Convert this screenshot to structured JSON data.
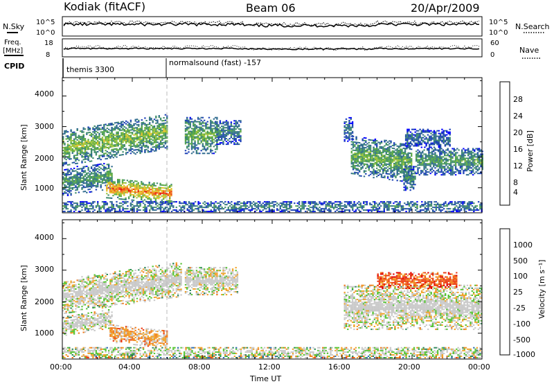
{
  "header": {
    "station": "Kodiak (fitACF)",
    "beam": "Beam 06",
    "date": "20/Apr/2009"
  },
  "top_panels": {
    "nsky_label": "N.Sky",
    "nsearch_label": "N.Search",
    "count_ticks_left": [
      "10^5",
      "10^0"
    ],
    "count_ticks_right": [
      "10^5",
      "10^0"
    ],
    "freq_label_1": "Freq.",
    "freq_label_2": "[MHz]",
    "freq_ticks": [
      "18",
      "8"
    ],
    "nave_label": "Nave",
    "nave_ticks": [
      "60",
      "0"
    ],
    "cpid_label": "CPID",
    "cpid_segments": [
      {
        "label": "themis 3300",
        "start_hour": 0.0
      },
      {
        "label": "normalsound (fast) -157",
        "start_hour": 6.0
      }
    ]
  },
  "axes": {
    "xlabel": "Time UT",
    "xticks": [
      "00:00",
      "04:00",
      "08:00",
      "12:00",
      "16:00",
      "20:00",
      "00:00"
    ],
    "ylabel": "Slant Range [km]",
    "yticks": [
      "4000",
      "3000",
      "2000",
      "1000"
    ],
    "power_label": "Power [dB]",
    "power_ticks": [
      "28",
      "24",
      "20",
      "16",
      "12",
      "8",
      "4"
    ],
    "velocity_label": "Velocity [m s⁻¹]",
    "velocity_ticks": [
      "1000",
      "500",
      "100",
      "25",
      "-25",
      "-100",
      "-500",
      "-1000"
    ]
  },
  "colors": {
    "power_scale": [
      "#0000ff",
      "#1a3fb5",
      "#2e6a8e",
      "#3e8c6a",
      "#58a845",
      "#9bc43a",
      "#e6c22a",
      "#f08a1e",
      "#ee3d12",
      "#e00000"
    ],
    "velocity_scale": [
      "#1f3fa8",
      "#2f6fb3",
      "#2f8a5c",
      "#55c433",
      "#c8c8c8",
      "#c8c8c8",
      "#f0a32a",
      "#f07a1a",
      "#ec3a10",
      "#e00000"
    ],
    "ground_scatter": "#bdbdbd"
  },
  "chart_data": {
    "type": "heatmap",
    "title": "Kodiak (fitACF)",
    "xlabel": "Time UT",
    "ylabel": "Slant Range [km]",
    "xlim_hours": [
      0,
      24
    ],
    "ylim_km": [
      180,
      4600
    ],
    "panels": [
      {
        "name": "Power [dB]",
        "range": [
          0,
          30
        ],
        "regions": [
          {
            "t0": 0.0,
            "t1": 6.0,
            "r0": 1700,
            "r1": 2850,
            "value": 16,
            "slope": 550
          },
          {
            "t0": 0.0,
            "t1": 2.8,
            "r0": 700,
            "r1": 1600,
            "value": 12,
            "slope": 250
          },
          {
            "t0": 2.5,
            "t1": 6.2,
            "r0": 650,
            "r1": 1300,
            "value": 24,
            "slope": -200
          },
          {
            "t0": 7.0,
            "t1": 8.8,
            "r0": 2100,
            "r1": 3300,
            "value": 14,
            "slope": 0
          },
          {
            "t0": 8.8,
            "t1": 10.2,
            "r0": 2400,
            "r1": 3200,
            "value": 10,
            "slope": 0
          },
          {
            "t0": 16.1,
            "t1": 16.6,
            "r0": 2500,
            "r1": 3300,
            "value": 8,
            "slope": 0
          },
          {
            "t0": 16.5,
            "t1": 20.0,
            "r0": 1400,
            "r1": 2700,
            "value": 14,
            "slope": -250
          },
          {
            "t0": 19.5,
            "t1": 20.2,
            "r0": 900,
            "r1": 1700,
            "value": 10,
            "slope": 0
          },
          {
            "t0": 20.2,
            "t1": 24.0,
            "r0": 1400,
            "r1": 2300,
            "value": 12,
            "slope": 0
          },
          {
            "t0": 19.6,
            "t1": 22.2,
            "r0": 2300,
            "r1": 2900,
            "value": 8,
            "slope": 0
          },
          {
            "t0": 0.0,
            "t1": 24.0,
            "r0": 200,
            "r1": 520,
            "value": 10,
            "slope": 0
          }
        ]
      },
      {
        "name": "Velocity [m s-1]",
        "range": [
          -1000,
          1000
        ],
        "regions": [
          {
            "t0": 0.0,
            "t1": 6.8,
            "r0": 1600,
            "r1": 2700,
            "value": 0,
            "slope": 550
          },
          {
            "t0": 0.0,
            "t1": 2.8,
            "r0": 900,
            "r1": 1500,
            "value": 0,
            "slope": 250
          },
          {
            "t0": 2.7,
            "t1": 6.0,
            "r0": 700,
            "r1": 1250,
            "value": 300,
            "slope": -200
          },
          {
            "t0": 7.0,
            "t1": 10.0,
            "r0": 2200,
            "r1": 3100,
            "value": 0,
            "slope": 0
          },
          {
            "t0": 16.1,
            "t1": 24.0,
            "r0": 1100,
            "r1": 2500,
            "value": 0,
            "slope": 0
          },
          {
            "t0": 18.0,
            "t1": 22.5,
            "r0": 2400,
            "r1": 2900,
            "value": 600,
            "slope": 0
          },
          {
            "t0": 0.0,
            "t1": 24.0,
            "r0": 200,
            "r1": 560,
            "value": -50,
            "slope": 0
          }
        ]
      }
    ]
  }
}
